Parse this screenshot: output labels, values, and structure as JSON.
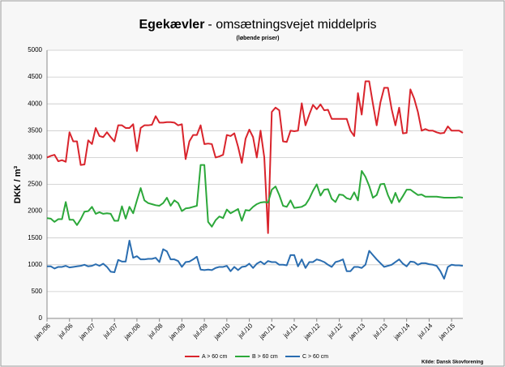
{
  "chart_data": {
    "type": "line",
    "title_bold": "Egekævler",
    "title": "- omsætningsvejet middelpris",
    "subtitle": "(løbende priser)",
    "y_label": "DKK / m³",
    "source": "Kilde: Dansk Skovforening",
    "ylim": [
      0,
      5000
    ],
    "yticks": [
      0,
      500,
      1000,
      1500,
      2000,
      2500,
      3000,
      3500,
      4000,
      4500,
      5000
    ],
    "grid": true,
    "legend": "bottom",
    "categories": [
      "jan./06",
      null,
      null,
      null,
      null,
      null,
      "jul./06",
      null,
      null,
      null,
      null,
      null,
      "jan./07",
      null,
      null,
      null,
      null,
      null,
      "jul./07",
      null,
      null,
      null,
      null,
      null,
      "jan./08",
      null,
      null,
      null,
      null,
      null,
      "jul./08",
      null,
      null,
      null,
      null,
      null,
      "jan./09",
      null,
      null,
      null,
      null,
      null,
      "jul./09",
      null,
      null,
      null,
      null,
      null,
      "jan./10",
      null,
      null,
      null,
      null,
      null,
      "jul./10",
      null,
      null,
      null,
      null,
      null,
      "jan./11",
      null,
      null,
      null,
      null,
      null,
      "jul./11",
      null,
      null,
      null,
      null,
      null,
      "jan./12",
      null,
      null,
      null,
      null,
      null,
      "jul./12",
      null,
      null,
      null,
      null,
      null,
      "jan./13",
      null,
      null,
      null,
      null,
      null,
      "jul./13",
      null,
      null,
      null,
      null,
      null,
      "jan./14",
      null,
      null,
      null,
      null,
      null,
      "jul./14",
      null,
      null,
      null,
      null,
      null,
      "jan./15",
      null,
      null,
      null
    ],
    "series": [
      {
        "name": "A > 60 cm",
        "color": "#d9242c",
        "values": [
          3000,
          3030,
          3050,
          2930,
          2950,
          2920,
          3470,
          3300,
          3300,
          2860,
          2870,
          3320,
          3250,
          3550,
          3400,
          3380,
          3470,
          3380,
          3300,
          3600,
          3600,
          3550,
          3550,
          3620,
          3120,
          3550,
          3600,
          3600,
          3610,
          3770,
          3650,
          3650,
          3660,
          3660,
          3650,
          3600,
          3620,
          2970,
          3300,
          3420,
          3420,
          3600,
          3250,
          3260,
          3250,
          3000,
          3020,
          3050,
          3420,
          3400,
          3450,
          3200,
          2900,
          3350,
          3520,
          3380,
          3000,
          3500,
          3000,
          1590,
          3850,
          3930,
          3880,
          3300,
          3290,
          3500,
          3490,
          3500,
          4010,
          3600,
          3800,
          3980,
          3900,
          3990,
          3880,
          3890,
          3720,
          3720,
          3720,
          3720,
          3720,
          3500,
          3400,
          4200,
          3800,
          4420,
          4420,
          4000,
          3600,
          4030,
          4300,
          4300,
          3900,
          3600,
          3930,
          3450,
          3460,
          4270,
          4100,
          3850,
          3500,
          3530,
          3500,
          3500,
          3470,
          3450,
          3460,
          3580,
          3500,
          3500,
          3500,
          3460
        ]
      },
      {
        "name": "B > 60 cm",
        "color": "#2ca83a",
        "values": [
          1870,
          1860,
          1800,
          1850,
          1850,
          2170,
          1840,
          1840,
          1740,
          1850,
          1990,
          2000,
          2080,
          1950,
          1980,
          1950,
          1960,
          1950,
          1820,
          1820,
          2090,
          1860,
          2080,
          1960,
          2200,
          2430,
          2200,
          2150,
          2130,
          2110,
          2100,
          2150,
          2250,
          2100,
          2200,
          2150,
          2000,
          2050,
          2060,
          2080,
          2100,
          2860,
          2860,
          1800,
          1710,
          1830,
          1900,
          1870,
          2030,
          1960,
          2000,
          2040,
          1820,
          2020,
          2010,
          2080,
          2130,
          2160,
          2170,
          2160,
          2400,
          2460,
          2300,
          2100,
          2080,
          2200,
          2060,
          2070,
          2080,
          2120,
          2230,
          2380,
          2500,
          2290,
          2400,
          2410,
          2230,
          2170,
          2310,
          2300,
          2240,
          2220,
          2350,
          2200,
          2750,
          2640,
          2470,
          2250,
          2300,
          2500,
          2510,
          2300,
          2150,
          2340,
          2170,
          2280,
          2400,
          2400,
          2350,
          2300,
          2310,
          2270,
          2270,
          2270,
          2270,
          2260,
          2250,
          2250,
          2250,
          2250,
          2260,
          2250
        ]
      },
      {
        "name": "C > 60 cm",
        "color": "#2a6db0",
        "values": [
          970,
          970,
          930,
          960,
          960,
          980,
          950,
          960,
          970,
          980,
          1000,
          970,
          980,
          1010,
          980,
          1020,
          960,
          870,
          860,
          1090,
          1060,
          1060,
          1450,
          1130,
          1160,
          1100,
          1100,
          1110,
          1110,
          1130,
          1050,
          1290,
          1250,
          1100,
          1100,
          1070,
          960,
          1050,
          1060,
          1100,
          1150,
          910,
          900,
          910,
          900,
          940,
          960,
          960,
          980,
          880,
          960,
          900,
          960,
          970,
          1020,
          940,
          1020,
          1060,
          1010,
          1070,
          1050,
          1050,
          1000,
          1000,
          990,
          1180,
          1180,
          970,
          1100,
          940,
          1050,
          1050,
          1100,
          1080,
          1050,
          1000,
          960,
          1050,
          1070,
          1100,
          880,
          880,
          960,
          960,
          940,
          1000,
          1260,
          1180,
          1100,
          1030,
          960,
          980,
          1000,
          1050,
          1100,
          1020,
          970,
          1060,
          1050,
          1000,
          1030,
          1030,
          1010,
          1000,
          980,
          880,
          740,
          960,
          1000,
          990,
          990,
          980
        ]
      }
    ]
  }
}
